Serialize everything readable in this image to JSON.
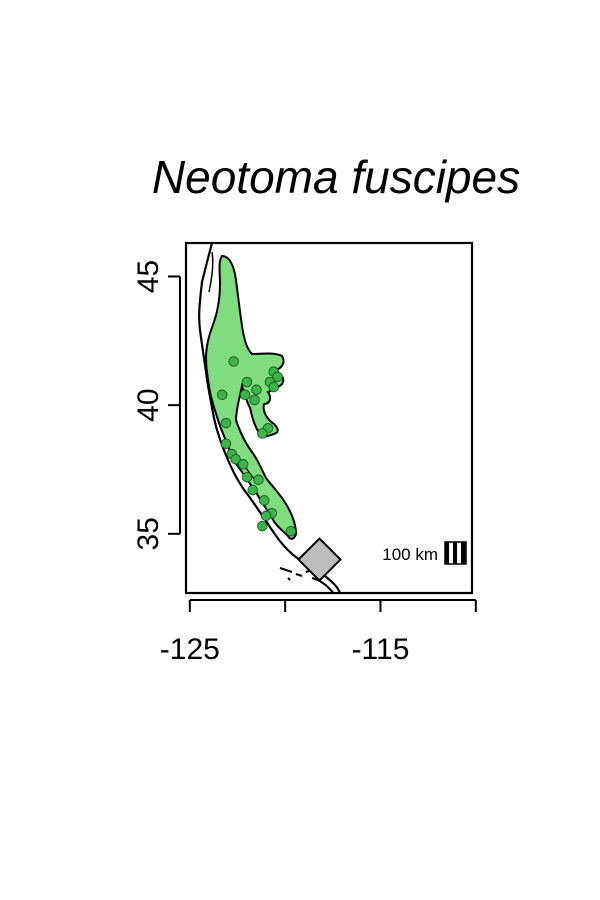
{
  "title": "Neotoma fuscipes",
  "map": {
    "lon_range": [
      -125.2,
      -110.2
    ],
    "lat_range": [
      32.7,
      46.3
    ],
    "x_ticks": [
      -125,
      -120,
      -115,
      -110
    ],
    "x_tick_labels": [
      "-125",
      "-115"
    ],
    "y_ticks": [
      35,
      40,
      45
    ],
    "y_tick_labels": [
      "35",
      "40",
      "45"
    ],
    "range_color": "#7fdc7f",
    "point_color": "#3cb44b",
    "marker_color": "#bdbdbd",
    "scale_bar_label": "100 km",
    "occurrences": [
      {
        "lon": -122.7,
        "lat": 41.7
      },
      {
        "lon": -120.6,
        "lat": 41.3
      },
      {
        "lon": -120.4,
        "lat": 41.1
      },
      {
        "lon": -122.0,
        "lat": 40.9
      },
      {
        "lon": -120.8,
        "lat": 40.9
      },
      {
        "lon": -120.6,
        "lat": 40.7
      },
      {
        "lon": -121.5,
        "lat": 40.6
      },
      {
        "lon": -123.3,
        "lat": 40.4
      },
      {
        "lon": -122.1,
        "lat": 40.4
      },
      {
        "lon": -121.6,
        "lat": 40.2
      },
      {
        "lon": -123.1,
        "lat": 39.3
      },
      {
        "lon": -120.9,
        "lat": 39.1
      },
      {
        "lon": -121.2,
        "lat": 38.9
      },
      {
        "lon": -123.1,
        "lat": 38.5
      },
      {
        "lon": -122.8,
        "lat": 38.1
      },
      {
        "lon": -122.6,
        "lat": 37.9
      },
      {
        "lon": -122.2,
        "lat": 37.7
      },
      {
        "lon": -122.0,
        "lat": 37.2
      },
      {
        "lon": -121.4,
        "lat": 37.1
      },
      {
        "lon": -121.7,
        "lat": 36.7
      },
      {
        "lon": -121.1,
        "lat": 36.3
      },
      {
        "lon": -120.7,
        "lat": 35.8
      },
      {
        "lon": -121.0,
        "lat": 35.7
      },
      {
        "lon": -121.2,
        "lat": 35.3
      },
      {
        "lon": -119.7,
        "lat": 35.1
      }
    ],
    "marker": {
      "lon": -118.2,
      "lat": 34.0
    }
  }
}
